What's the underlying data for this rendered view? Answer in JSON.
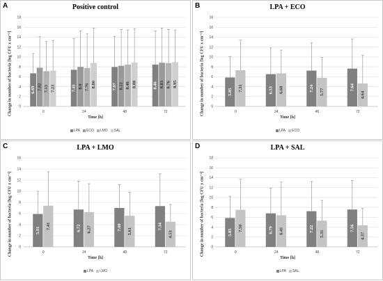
{
  "chart_data": [
    {
      "type": "bar",
      "panel": "A",
      "title": "Positive control",
      "ylabel": "Change in number of bacteria [log CFU x cm⁻²]",
      "xlabel": "Time [h]",
      "categories": [
        "0",
        "24",
        "48",
        "72"
      ],
      "ylim": [
        0,
        18
      ],
      "yticks": [
        0,
        2,
        4,
        6,
        8,
        10,
        12,
        14,
        16,
        18
      ],
      "legend_position": "bottom",
      "grid": true,
      "series": [
        {
          "name": "LPA",
          "color": "#808080",
          "values": [
            6.69,
            7.41,
            7.97,
            8.46
          ],
          "error": [
            4.0,
            6.3,
            6.2,
            6.8
          ]
        },
        {
          "name": "ECO",
          "color": "#999999",
          "values": [
            7.82,
            8.0,
            8.22,
            8.83
          ],
          "error": [
            6.3,
            7.3,
            7.3,
            7.0
          ]
        },
        {
          "name": "LMO",
          "color": "#b3b3b3",
          "values": [
            7.13,
            7.76,
            8.46,
            8.76
          ],
          "error": [
            6.0,
            6.9,
            7.0,
            6.8
          ]
        },
        {
          "name": "SAL",
          "color": "#cfcfcf",
          "values": [
            7.23,
            8.8,
            8.88,
            8.95
          ],
          "error": [
            6.1,
            7.0,
            6.8,
            6.5
          ]
        }
      ],
      "value_labels": [
        [
          "6.69",
          "7.41",
          "7.97",
          "8.46"
        ],
        [
          "7.82",
          "8.0",
          "8.22",
          "8.83"
        ],
        [
          "7.13",
          "7.76",
          "8.46",
          "8.76"
        ],
        [
          "7.23",
          "8.80",
          "8.88",
          "8.95"
        ]
      ]
    },
    {
      "type": "bar",
      "panel": "B",
      "title": "LPA + ECO",
      "ylabel": "Change in number of bacteria [log CFU x cm⁻²]",
      "xlabel": "Time [h]",
      "categories": [
        "0",
        "24",
        "48",
        "72"
      ],
      "ylim": [
        0,
        18
      ],
      "yticks": [
        0,
        2,
        4,
        6,
        8,
        10,
        12,
        14,
        16,
        18
      ],
      "legend_position": "bottom",
      "grid": true,
      "series": [
        {
          "name": "LPA",
          "color": "#808080",
          "values": [
            5.85,
            6.53,
            7.24,
            7.64
          ],
          "error": [
            4.2,
            5.3,
            5.6,
            6.0
          ]
        },
        {
          "name": "ECO",
          "color": "#c4c4c4",
          "values": [
            7.31,
            6.68,
            5.77,
            4.64
          ],
          "error": [
            6.1,
            4.7,
            4.1,
            5.7
          ]
        }
      ],
      "value_labels": [
        [
          "5.85",
          "6.53",
          "7.24",
          "7.64"
        ],
        [
          "7.31",
          "6.68",
          "5.77",
          "4.64"
        ]
      ]
    },
    {
      "type": "bar",
      "panel": "C",
      "title": "LPA + LMO",
      "ylabel": "Change in number of bacteria [log CFU x cm⁻²]",
      "xlabel": "Time [h]",
      "categories": [
        "0",
        "24",
        "48",
        "72"
      ],
      "ylim": [
        0,
        16
      ],
      "yticks": [
        0,
        2,
        4,
        6,
        8,
        10,
        12,
        14,
        16
      ],
      "legend_position": "bottom",
      "grid": true,
      "series": [
        {
          "name": "LPA",
          "color": "#808080",
          "values": [
            5.91,
            6.72,
            7.0,
            7.34
          ],
          "error": [
            4.1,
            5.1,
            4.2,
            5.8
          ]
        },
        {
          "name": "LMO",
          "color": "#c4c4c4",
          "values": [
            7.41,
            6.27,
            5.61,
            4.53
          ],
          "error": [
            6.1,
            5.1,
            4.2,
            3.1
          ]
        }
      ],
      "value_labels": [
        [
          "5.91",
          "6.72",
          "7.00",
          "7.34"
        ],
        [
          "7.41",
          "6.27",
          "5.61",
          "4.53"
        ]
      ]
    },
    {
      "type": "bar",
      "panel": "D",
      "title": "LPA + SAL",
      "ylabel": "Change in number of bacteria [log CFU x cm⁻²]",
      "xlabel": "Time [h]",
      "categories": [
        "0",
        "24",
        "48",
        "72"
      ],
      "ylim": [
        0,
        18
      ],
      "yticks": [
        0,
        2,
        4,
        6,
        8,
        10,
        12,
        14,
        16,
        18
      ],
      "legend_position": "bottom",
      "grid": true,
      "series": [
        {
          "name": "LPA",
          "color": "#808080",
          "values": [
            5.85,
            6.79,
            7.22,
            7.56
          ],
          "error": [
            4.4,
            5.1,
            6.0,
            5.9
          ]
        },
        {
          "name": "SAL",
          "color": "#c4c4c4",
          "values": [
            7.5,
            6.41,
            5.31,
            4.37
          ],
          "error": [
            6.2,
            6.7,
            4.1,
            3.4
          ]
        }
      ],
      "value_labels": [
        [
          "5.85",
          "6.79",
          "7.22",
          "7.56"
        ],
        [
          "7.50",
          "6.41",
          "5.31",
          "4.37"
        ]
      ]
    }
  ]
}
